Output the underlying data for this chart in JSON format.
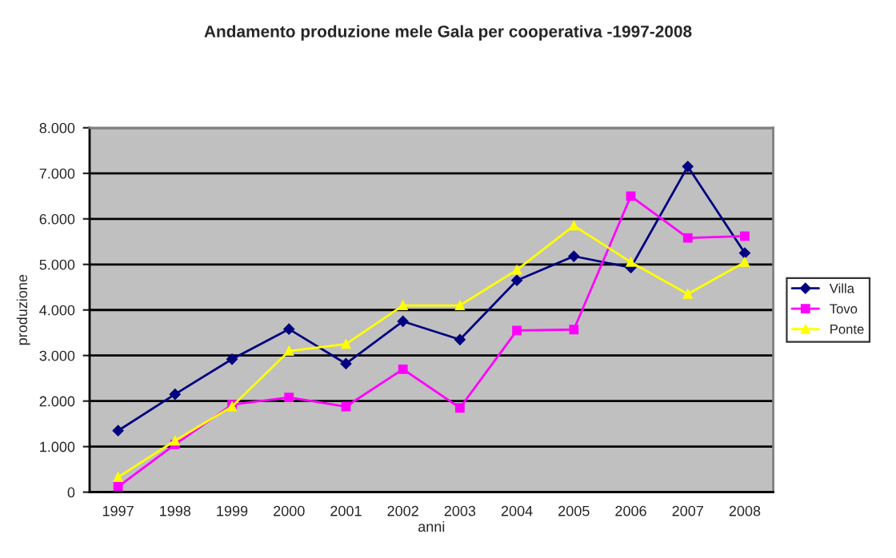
{
  "chart_data": {
    "type": "line",
    "title": "Andamento produzione mele Gala per cooperativa -1997-2008",
    "xlabel": "anni",
    "ylabel": "produzione",
    "categories": [
      "1997",
      "1998",
      "1999",
      "2000",
      "2001",
      "2002",
      "2003",
      "2004",
      "2005",
      "2006",
      "2007",
      "2008"
    ],
    "series": [
      {
        "name": "Villa",
        "color": "#000080",
        "marker": "diamond",
        "values": [
          1350,
          2150,
          2920,
          3580,
          2820,
          3750,
          3350,
          4650,
          5180,
          4930,
          7150,
          5250
        ]
      },
      {
        "name": "Tovo",
        "color": "#ff00ff",
        "marker": "square",
        "values": [
          120,
          1050,
          1920,
          2080,
          1880,
          2700,
          1850,
          3550,
          3570,
          6500,
          5580,
          5620
        ]
      },
      {
        "name": "Ponte",
        "color": "#ffff00",
        "marker": "triangle",
        "values": [
          330,
          1130,
          1880,
          3100,
          3250,
          4100,
          4100,
          4880,
          5850,
          5050,
          4350,
          5050
        ]
      }
    ],
    "ylim": [
      0,
      8000
    ],
    "yticks": [
      {
        "value": 0,
        "label": "0"
      },
      {
        "value": 1000,
        "label": "1.000"
      },
      {
        "value": 2000,
        "label": "2.000"
      },
      {
        "value": 3000,
        "label": "3.000"
      },
      {
        "value": 4000,
        "label": "4.000"
      },
      {
        "value": 5000,
        "label": "5.000"
      },
      {
        "value": 6000,
        "label": "6.000"
      },
      {
        "value": 7000,
        "label": "7.000"
      },
      {
        "value": 8000,
        "label": "8.000"
      }
    ],
    "grid": "y",
    "legend": "right"
  }
}
